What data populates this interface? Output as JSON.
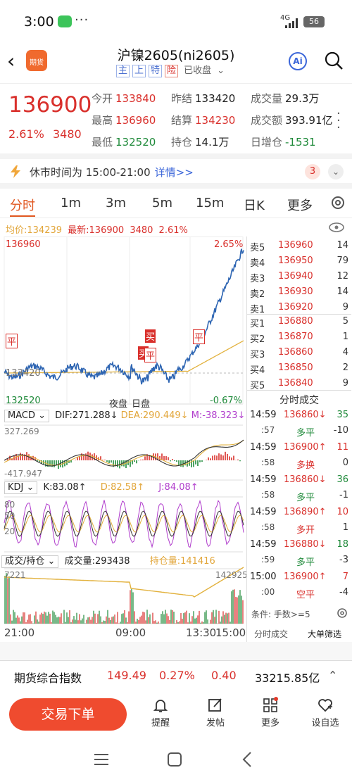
{
  "status": {
    "time": "3:00",
    "net": "4G",
    "battery": "56"
  },
  "nav": {
    "logo_text": "期货",
    "title": "沪镍2605(ni2605)",
    "tags": [
      "主",
      "上",
      "特",
      "险"
    ],
    "state": "已收盘"
  },
  "quote": {
    "price": "136900",
    "pct": "2.61%",
    "change": "3480",
    "fields": [
      {
        "k": "今开",
        "v": "133840",
        "c": "red"
      },
      {
        "k": "昨结",
        "v": "133420",
        "c": "plain"
      },
      {
        "k": "成交量",
        "v": "29.3万",
        "c": "plain"
      },
      {
        "k": "最高",
        "v": "136960",
        "c": "red"
      },
      {
        "k": "结算",
        "v": "134230",
        "c": "red"
      },
      {
        "k": "成交额",
        "v": "393.91亿",
        "c": "plain"
      },
      {
        "k": "最低",
        "v": "132520",
        "c": "green"
      },
      {
        "k": "持仓",
        "v": "14.1万",
        "c": "plain"
      },
      {
        "k": "日增仓",
        "v": "-1531",
        "c": "green"
      }
    ]
  },
  "notice": {
    "text": "休市时间为 15:00-21:00",
    "link": "详情>>",
    "count": "3"
  },
  "tabs": [
    "分时",
    "1m",
    "3m",
    "5m",
    "15m",
    "日K",
    "更多"
  ],
  "info": {
    "avg_label": "均价:134239",
    "latest_label": "最新:136900",
    "chg": "3480",
    "pct": "2.61%"
  },
  "chart_labels": {
    "top_price": "136960",
    "top_pct": "2.65%",
    "bottom_price": "132520",
    "bottom_pct": "-0.67%",
    "mid_price": "133420",
    "night": "夜盘",
    "day": "日盘",
    "marker_ping": "平",
    "marker_mai": "买",
    "macd": {
      "name": "MACD",
      "dif": "DIF:271.288↓",
      "dea": "DEA:290.449↓",
      "m": "M:-38.323↓",
      "top": "327.269",
      "bottom": "-417.947"
    },
    "kdj": {
      "name": "KDJ",
      "k": "K:83.08↑",
      "d": "D:82.58↑",
      "j": "J:84.08↑",
      "t80": "80",
      "t50": "50",
      "t20": "20"
    },
    "vol": {
      "name": "成交/持仓",
      "vol": "成交量:293438",
      "oi": "持仓量:141416",
      "left": "7221",
      "right": "142925"
    }
  },
  "axis": [
    "21:00",
    "09:00",
    "13:30",
    "15:00"
  ],
  "book": {
    "asks": [
      {
        "n": "卖5",
        "p": "136960",
        "v": "14"
      },
      {
        "n": "卖4",
        "p": "136950",
        "v": "79"
      },
      {
        "n": "卖3",
        "p": "136940",
        "v": "12"
      },
      {
        "n": "卖2",
        "p": "136930",
        "v": "14"
      },
      {
        "n": "卖1",
        "p": "136920",
        "v": "9"
      }
    ],
    "bids": [
      {
        "n": "买1",
        "p": "136880",
        "v": "5"
      },
      {
        "n": "买2",
        "p": "136870",
        "v": "1"
      },
      {
        "n": "买3",
        "p": "136860",
        "v": "4"
      },
      {
        "n": "买4",
        "p": "136850",
        "v": "2"
      },
      {
        "n": "买5",
        "p": "136840",
        "v": "9"
      }
    ],
    "ticks_title": "分时成交",
    "ticks": [
      {
        "t": "14:59",
        "s": ":57",
        "p": "136860↓",
        "pc": "red",
        "v": "35",
        "vc": "green",
        "ty": "多平",
        "tc": "green",
        "vv": "-10"
      },
      {
        "t": "14:59",
        "s": ":58",
        "p": "136900↑",
        "pc": "red",
        "v": "11",
        "vc": "red",
        "ty": "多换",
        "tc": "red",
        "vv": "0"
      },
      {
        "t": "14:59",
        "s": ":58",
        "p": "136860↓",
        "pc": "red",
        "v": "36",
        "vc": "green",
        "ty": "多平",
        "tc": "green",
        "vv": "-1"
      },
      {
        "t": "14:59",
        "s": ":58",
        "p": "136890↑",
        "pc": "red",
        "v": "10",
        "vc": "red",
        "ty": "多开",
        "tc": "red",
        "vv": "1"
      },
      {
        "t": "14:59",
        "s": ":59",
        "p": "136880↓",
        "pc": "red",
        "v": "18",
        "vc": "green",
        "ty": "多平",
        "tc": "green",
        "vv": "-3"
      },
      {
        "t": "15:00",
        "s": ":00",
        "p": "136900↑",
        "pc": "red",
        "v": "7",
        "vc": "red",
        "ty": "空平",
        "tc": "red",
        "vv": "-4"
      }
    ],
    "filter": "条件: 手数>=5",
    "btn_ticks": "分时成交",
    "btn_big": "大单筛选"
  },
  "index": {
    "name": "期货综合指数",
    "value": "149.49",
    "pct": "0.27%",
    "chg": "0.40",
    "amount": "33215.85亿"
  },
  "toolbar": {
    "trade": "交易下单",
    "items": [
      "提醒",
      "发帖",
      "更多",
      "设自选"
    ]
  },
  "colors": {
    "up": "#d9302c",
    "down": "#1f8a3a",
    "accent": "#e0561f",
    "line": "#2f66b3",
    "avg": "#e2b13c"
  }
}
